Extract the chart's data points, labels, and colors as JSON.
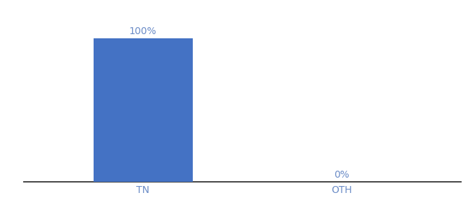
{
  "categories": [
    "TN",
    "OTH"
  ],
  "values": [
    100,
    0
  ],
  "bar_color": "#4472c4",
  "label_color": "#6b8cc7",
  "axis_label_color": "#6b8cc7",
  "bar_width": 0.5,
  "ylim": [
    0,
    115
  ],
  "background_color": "#ffffff",
  "value_labels": [
    "100%",
    "0%"
  ],
  "label_fontsize": 10,
  "tick_fontsize": 10,
  "spine_color": "#222222"
}
